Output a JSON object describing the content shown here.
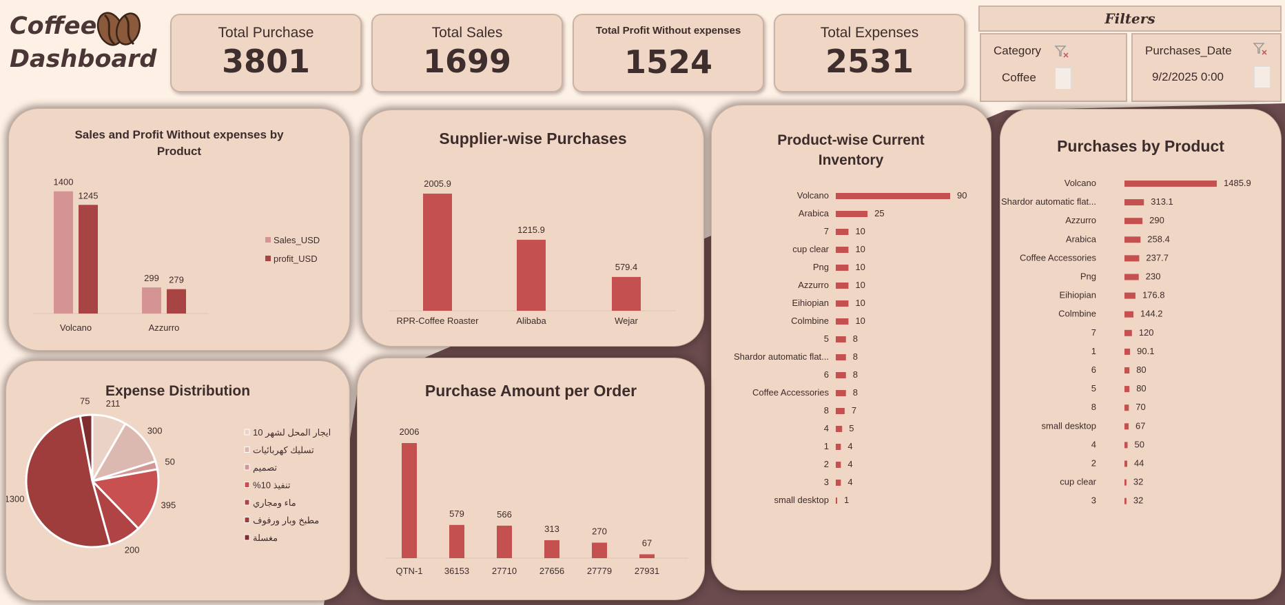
{
  "header": {
    "title_line1": "Coffee",
    "title_line2": "Dashboard"
  },
  "kpis": [
    {
      "label": "Total Purchase",
      "value": "3801"
    },
    {
      "label": "Total Sales",
      "value": "1699"
    },
    {
      "label": "Total Profit Without expenses",
      "value": "1524"
    },
    {
      "label": "Total Expenses",
      "value": "2531"
    }
  ],
  "filters": {
    "title": "Filters",
    "category": {
      "label": "Category",
      "value": "Coffee"
    },
    "date": {
      "label": "Purchases_Date",
      "value": "9/2/2025 0:00"
    }
  },
  "colors": {
    "light_bar": "#d49494",
    "dark_bar": "#a94444",
    "bar": "#c45050"
  },
  "chart_data": [
    {
      "id": "sales_profit",
      "type": "bar",
      "title": "Sales and Profit Without expenses by Product",
      "categories": [
        "Volcano",
        "Azzurro"
      ],
      "series": [
        {
          "name": "Sales_USD",
          "values": [
            1400,
            299
          ]
        },
        {
          "name": "profit_USD",
          "values": [
            1245,
            279
          ]
        }
      ],
      "legend": "right"
    },
    {
      "id": "supplier",
      "type": "bar",
      "title": "Supplier-wise Purchases",
      "categories": [
        "RPR-Coffee Roaster",
        "Alibaba",
        "Wejar"
      ],
      "values": [
        2005.9,
        1215.9,
        579.4
      ]
    },
    {
      "id": "inventory",
      "type": "bar",
      "orientation": "horizontal",
      "title": "Product-wise Current Inventory",
      "categories": [
        "Volcano",
        "Arabica",
        "7",
        "cup clear",
        "Png",
        "Azzurro",
        "Eihiopian",
        "Colmbine",
        "5",
        "Shardor automatic flat...",
        "6",
        "Coffee Accessories",
        "8",
        "4",
        "1",
        "2",
        "3",
        "small desktop"
      ],
      "values": [
        90,
        25,
        10,
        10,
        10,
        10,
        10,
        10,
        8,
        8,
        8,
        8,
        7,
        5,
        4,
        4,
        4,
        1
      ]
    },
    {
      "id": "purch_product",
      "type": "bar",
      "orientation": "horizontal",
      "title": "Purchases by Product",
      "categories": [
        "Volcano",
        "Shardor automatic flat...",
        "Azzurro",
        "Arabica",
        "Coffee Accessories",
        "Png",
        "Eihiopian",
        "Colmbine",
        "7",
        "1",
        "6",
        "5",
        "8",
        "small desktop",
        "4",
        "2",
        "cup clear",
        "3"
      ],
      "values": [
        1485.9,
        313.1,
        290,
        258.4,
        237.7,
        230,
        176.8,
        144.2,
        120,
        90.1,
        80,
        80,
        70,
        67,
        50,
        44,
        32,
        32
      ]
    },
    {
      "id": "expense",
      "type": "pie",
      "title": "Expense Distribution",
      "labels": [
        "ايجار المحل لشهر 10",
        "تسليك كهربائيات",
        "تصميم",
        "تنفيذ 10%",
        "ماء ومجاري",
        "مطبخ وبار ورفوف",
        "مغسلة"
      ],
      "values": [
        211,
        300,
        50,
        395,
        200,
        1300,
        75
      ],
      "colors": [
        "#ead2c6",
        "#dbb8b0",
        "#d19696",
        "#c85050",
        "#b04444",
        "#9f3c3c",
        "#7e2e2e"
      ],
      "legend": "right"
    },
    {
      "id": "order",
      "type": "bar",
      "title": "Purchase Amount per Order",
      "categories": [
        "QTN-1",
        "36153",
        "27710",
        "27656",
        "27779",
        "27931"
      ],
      "values": [
        2006,
        579,
        566,
        313,
        270,
        67
      ]
    }
  ]
}
